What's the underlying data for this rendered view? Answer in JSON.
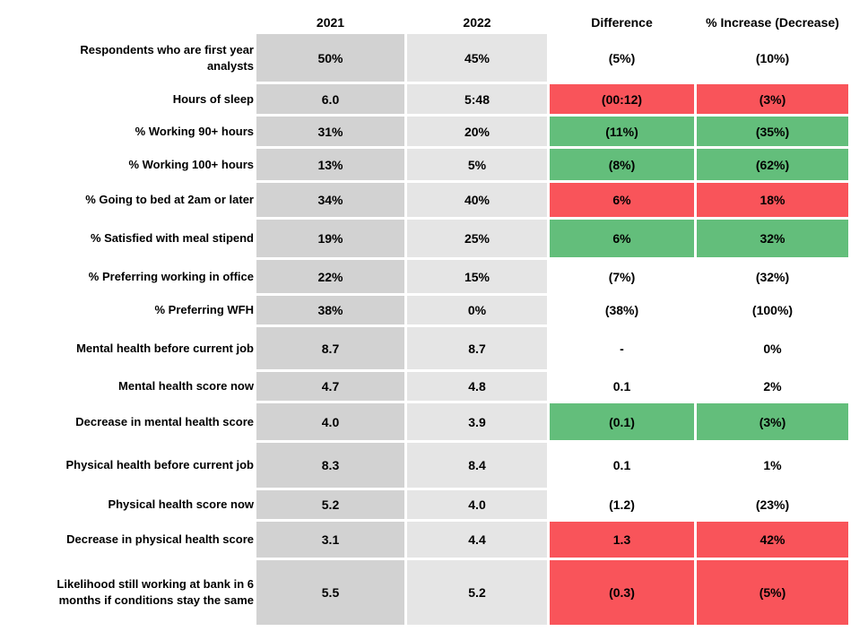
{
  "chart_data": {
    "type": "table",
    "title": "",
    "columns": [
      "",
      "2021",
      "2022",
      "Difference",
      "% Increase (Decrease)"
    ],
    "rows": [
      {
        "label": "Respondents who are first year analysts",
        "y2021": "50%",
        "y2022": "45%",
        "difference": "(5%)",
        "pct_change": "(10%)",
        "highlight": "none"
      },
      {
        "label": "Hours of sleep",
        "y2021": "6.0",
        "y2022": "5:48",
        "difference": "(00:12)",
        "pct_change": "(3%)",
        "highlight": "red"
      },
      {
        "label": "% Working 90+ hours",
        "y2021": "31%",
        "y2022": "20%",
        "difference": "(11%)",
        "pct_change": "(35%)",
        "highlight": "green"
      },
      {
        "label": "% Working 100+ hours",
        "y2021": "13%",
        "y2022": "5%",
        "difference": "(8%)",
        "pct_change": "(62%)",
        "highlight": "green"
      },
      {
        "label": "% Going to bed at 2am or later",
        "y2021": "34%",
        "y2022": "40%",
        "difference": "6%",
        "pct_change": "18%",
        "highlight": "red"
      },
      {
        "label": "% Satisfied with meal stipend",
        "y2021": "19%",
        "y2022": "25%",
        "difference": "6%",
        "pct_change": "32%",
        "highlight": "green"
      },
      {
        "label": "% Preferring working in office",
        "y2021": "22%",
        "y2022": "15%",
        "difference": "(7%)",
        "pct_change": "(32%)",
        "highlight": "none"
      },
      {
        "label": "% Preferring WFH",
        "y2021": "38%",
        "y2022": "0%",
        "difference": "(38%)",
        "pct_change": "(100%)",
        "highlight": "none"
      },
      {
        "label": "Mental health before current job",
        "y2021": "8.7",
        "y2022": "8.7",
        "difference": "-",
        "pct_change": "0%",
        "highlight": "none"
      },
      {
        "label": "Mental health score now",
        "y2021": "4.7",
        "y2022": "4.8",
        "difference": "0.1",
        "pct_change": "2%",
        "highlight": "none"
      },
      {
        "label": "Decrease in mental health score",
        "y2021": "4.0",
        "y2022": "3.9",
        "difference": "(0.1)",
        "pct_change": "(3%)",
        "highlight": "green"
      },
      {
        "label": "Physical health before current job",
        "y2021": "8.3",
        "y2022": "8.4",
        "difference": "0.1",
        "pct_change": "1%",
        "highlight": "none"
      },
      {
        "label": "Physical health score now",
        "y2021": "5.2",
        "y2022": "4.0",
        "difference": "(1.2)",
        "pct_change": "(23%)",
        "highlight": "none"
      },
      {
        "label": "Decrease in physical health score",
        "y2021": "3.1",
        "y2022": "4.4",
        "difference": "1.3",
        "pct_change": "42%",
        "highlight": "red"
      },
      {
        "label": "Likelihood still working at bank in 6 months if conditions stay the same",
        "y2021": "5.5",
        "y2022": "5.2",
        "difference": "(0.3)",
        "pct_change": "(5%)",
        "highlight": "red"
      }
    ],
    "legend": "Red cells = change for the worse, green cells = change for the better, white cells = neutral/no highlight",
    "colors": {
      "negative_red": "#F9545A",
      "positive_green": "#63BE7B",
      "col_2021_bg": "#D2D2D2",
      "col_2022_bg": "#E5E5E5",
      "text": "#000000"
    }
  }
}
